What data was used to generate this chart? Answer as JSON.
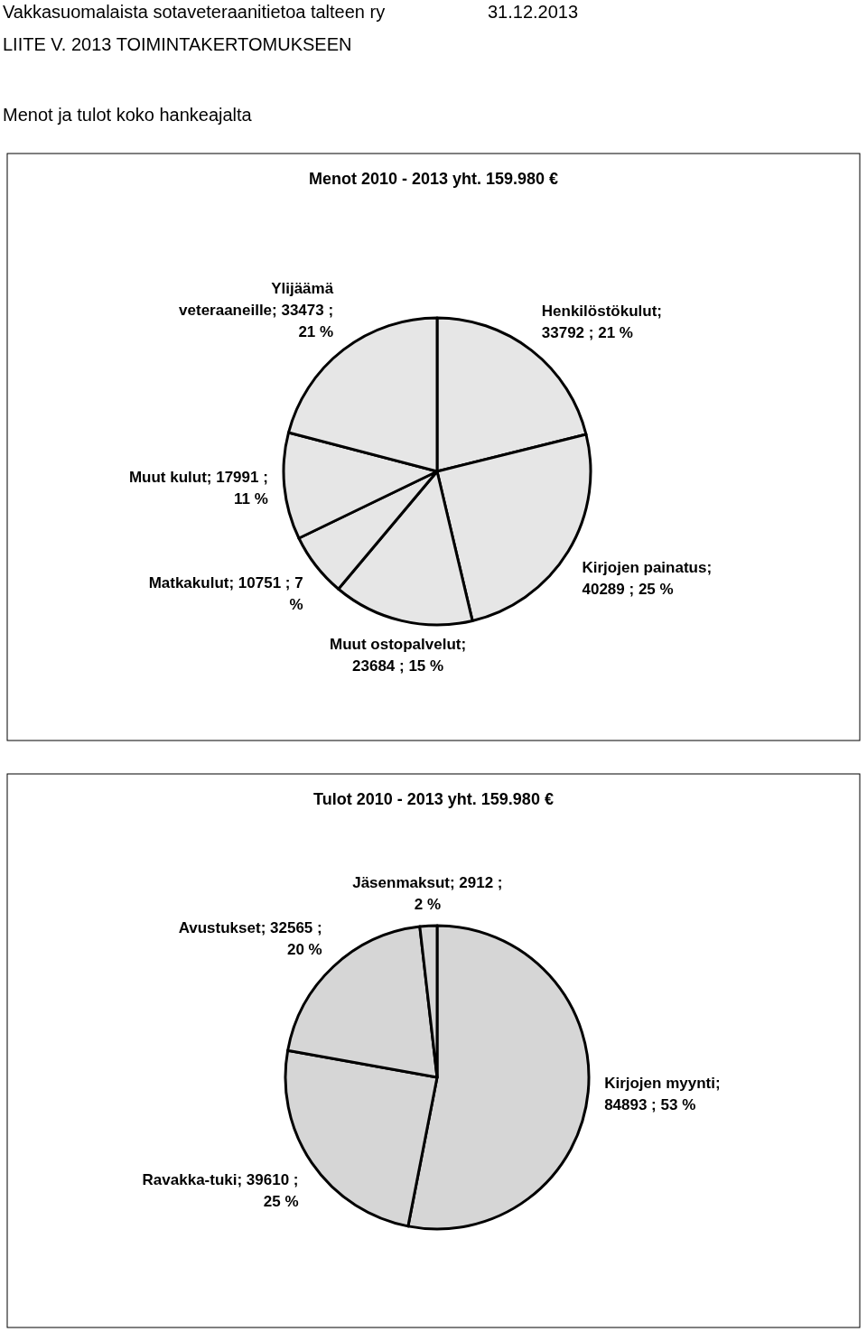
{
  "chart_data": [
    {
      "type": "pie",
      "title": "Menot 2010 - 2013 yht. 159.980 €",
      "annotations": [
        "Vakkasuomalaista sotaveteraanitietoa talteen ry",
        "31.12.2013",
        "LIITE V. 2013 TOIMINTAKERTOMUKSEEN",
        "Menot ja tulot koko hankeajalta"
      ],
      "categories": [
        "Henkilöstökulut",
        "Kirjojen painatus",
        "Muut ostopalvelut",
        "Matkakulut",
        "Muut kulut",
        "Ylijäämä veteraaneille"
      ],
      "values": [
        33792,
        40289,
        23684,
        10751,
        17991,
        33473
      ],
      "value_labels": [
        "; 33792 ; 21 %",
        "; 40289 ; 25 %",
        "; 23684 ; 15 %",
        "; 10751 ; 7 %",
        "; 17991 ; 11 %",
        "; 33473 ; 21 %"
      ],
      "colors": [
        "#e6e6e6",
        "#e6e6e6",
        "#e6e6e6",
        "#e6e6e6",
        "#e6e6e6",
        "#e6e6e6"
      ]
    },
    {
      "type": "pie",
      "title": "Tulot 2010 - 2013 yht. 159.980 €",
      "categories": [
        "Kirjojen myynti",
        "Ravakka-tuki",
        "Avustukset",
        "Jäsenmaksut"
      ],
      "values": [
        84893,
        39610,
        32565,
        2912
      ],
      "value_labels": [
        "; 84893 ; 53 %",
        "; 39610 ; 25 %",
        "; 32565 ; 20 %",
        "; 2912 ; 2 %"
      ],
      "colors": [
        "#d6d6d6",
        "#d6d6d6",
        "#d6d6d6",
        "#d6d6d6"
      ]
    }
  ]
}
